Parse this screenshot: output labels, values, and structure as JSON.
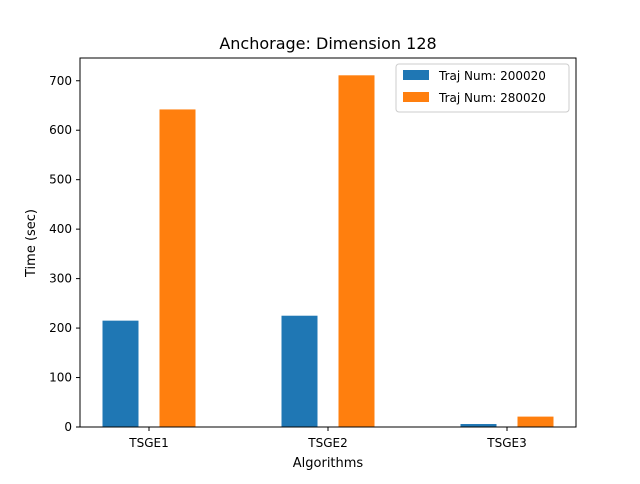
{
  "chart_data": {
    "type": "bar",
    "title": "Anchorage: Dimension 128",
    "xlabel": "Algorithms",
    "ylabel": "Time (sec)",
    "categories": [
      "TSGE1",
      "TSGE2",
      "TSGE3"
    ],
    "series": [
      {
        "name": "Traj Num: 200020",
        "color": "#1f77b4",
        "values": [
          215,
          225,
          6
        ]
      },
      {
        "name": "Traj Num: 280020",
        "color": "#ff7f0e",
        "values": [
          642,
          711,
          21
        ]
      }
    ],
    "ylim": [
      0,
      746
    ],
    "yticks": [
      0,
      100,
      200,
      300,
      400,
      500,
      600,
      700
    ],
    "legend_position": "top-right",
    "grid": false
  }
}
